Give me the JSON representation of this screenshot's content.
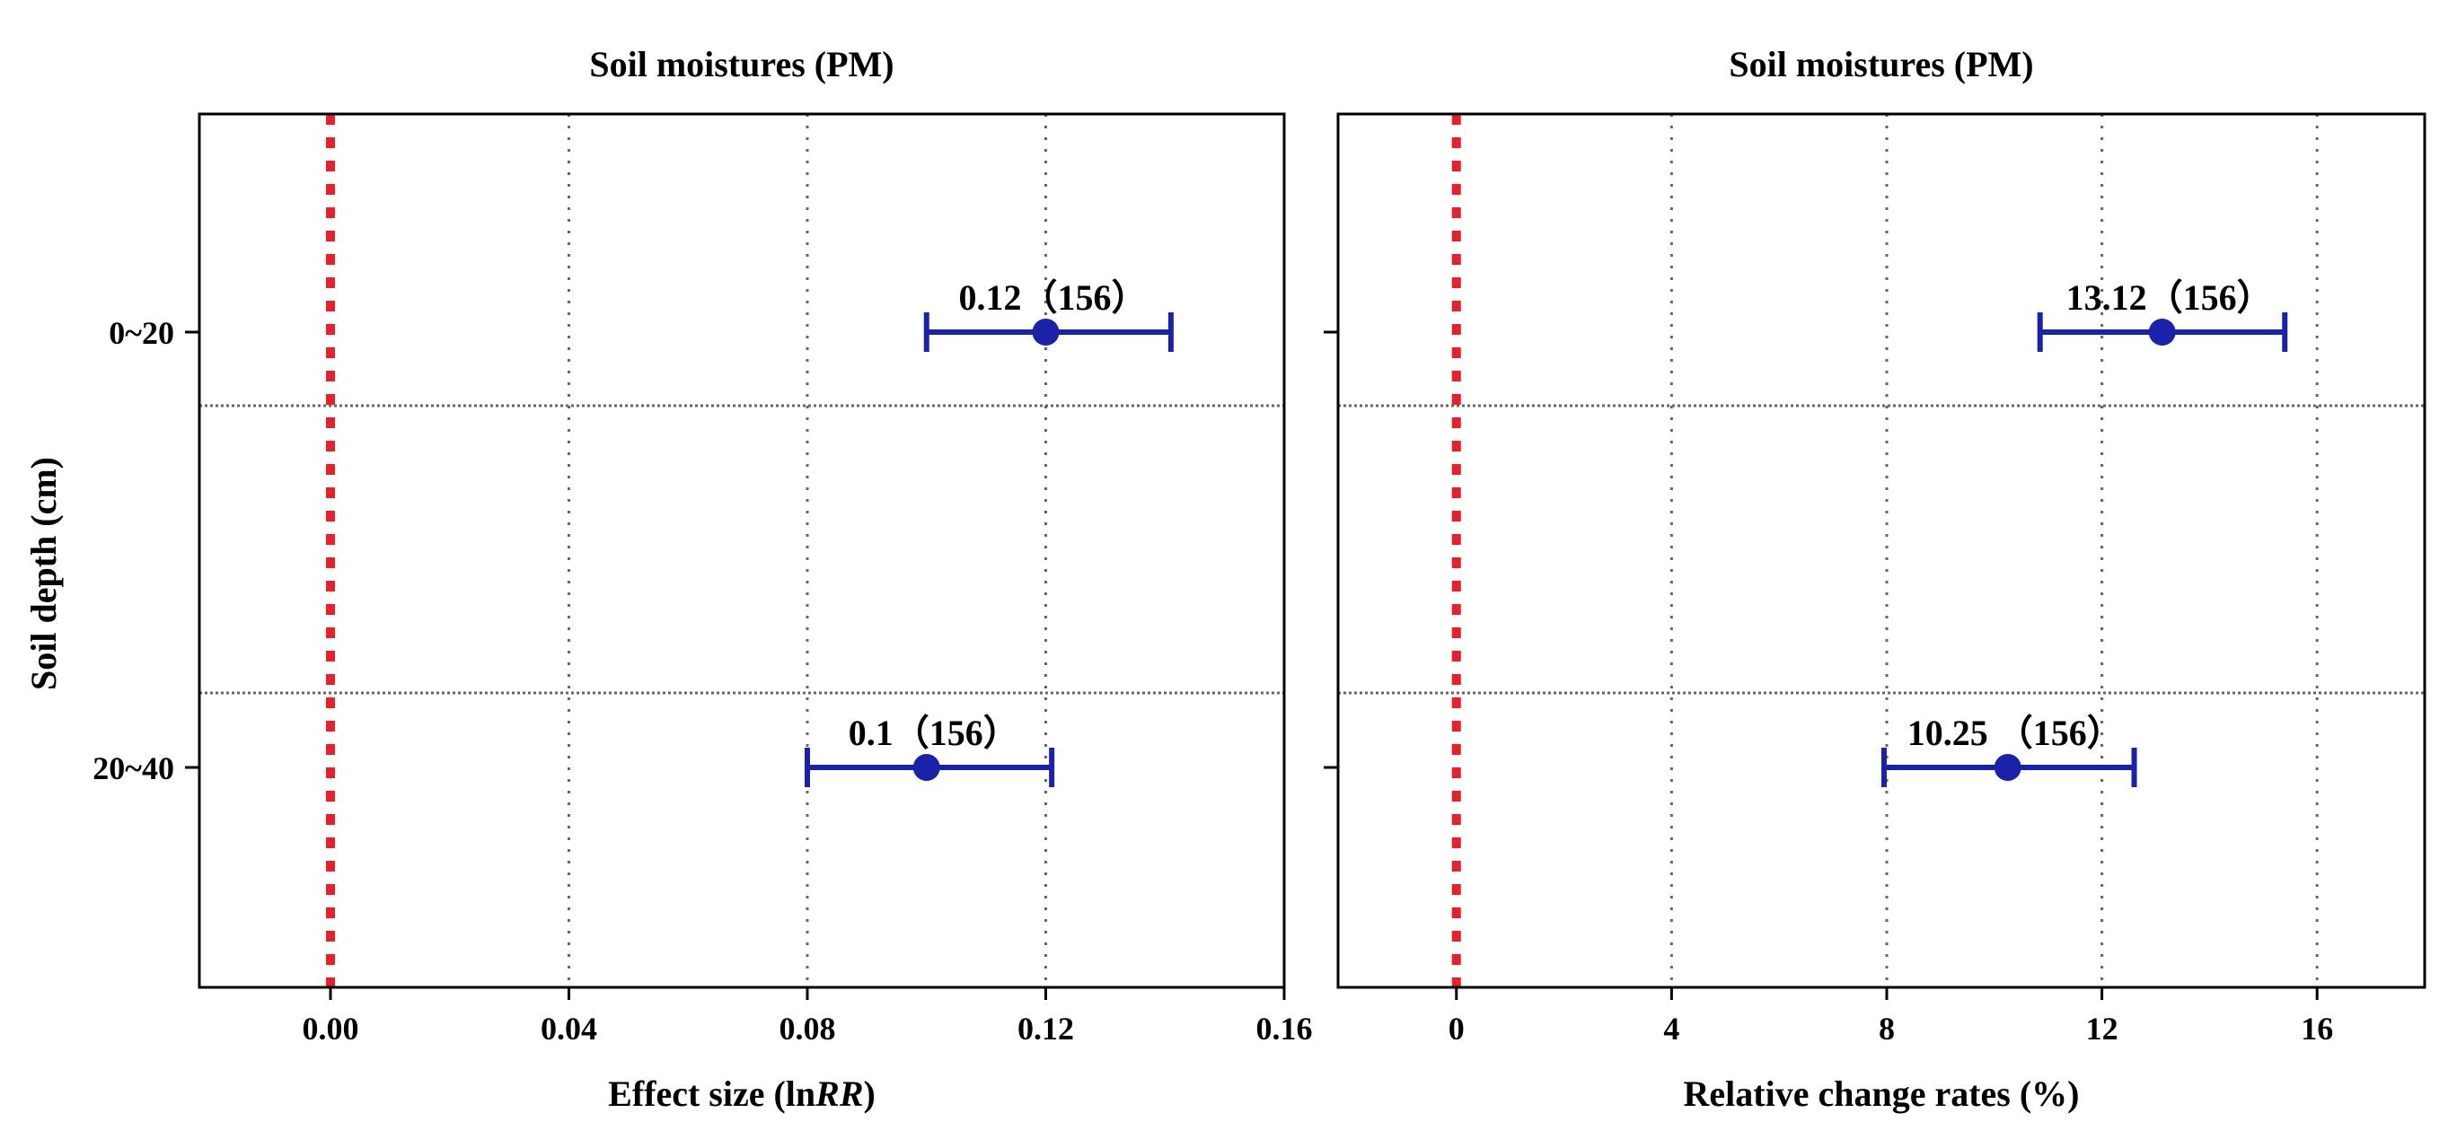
{
  "figure_ylabel": "Soil depth (cm)",
  "chart_data": [
    {
      "type": "errorbar",
      "title": "Soil moistures (PM)",
      "xlabel_prefix": "Effect size (ln",
      "xlabel_italic": "RR",
      "xlabel_suffix": ")",
      "xlim": [
        -0.022,
        0.16
      ],
      "xticks": [
        0.0,
        0.04,
        0.08,
        0.12,
        0.16
      ],
      "xtick_labels": [
        "0.00",
        "0.04",
        "0.08",
        "0.12",
        "0.16"
      ],
      "reference_line": 0,
      "categories": [
        "0~20",
        "20~40"
      ],
      "points": [
        {
          "category": "0~20",
          "value": 0.12,
          "ci_low": 0.1,
          "ci_high": 0.141,
          "label": "0.12（156）"
        },
        {
          "category": "20~40",
          "value": 0.1,
          "ci_low": 0.08,
          "ci_high": 0.121,
          "label": "0.1（156）"
        }
      ],
      "colors": {
        "point": "#1a23a8",
        "reference": "#e8202a",
        "grid": "#666666"
      }
    },
    {
      "type": "errorbar",
      "title": "Soil moistures (PM)",
      "xlabel_prefix": "Relative change rates (%)",
      "xlabel_italic": "",
      "xlabel_suffix": "",
      "xlim": [
        -2.2,
        18.0
      ],
      "xticks": [
        0,
        4,
        8,
        12,
        16
      ],
      "xtick_labels": [
        "0",
        "4",
        "8",
        "12",
        "16"
      ],
      "reference_line": 0,
      "categories": [
        "0~20",
        "20~40"
      ],
      "points": [
        {
          "category": "0~20",
          "value": 13.12,
          "ci_low": 10.85,
          "ci_high": 15.4,
          "label": "13.12（156）"
        },
        {
          "category": "20~40",
          "value": 10.25,
          "ci_low": 7.95,
          "ci_high": 12.6,
          "label": "10.25 （156）"
        }
      ],
      "colors": {
        "point": "#1a23a8",
        "reference": "#e8202a",
        "grid": "#666666"
      }
    }
  ]
}
